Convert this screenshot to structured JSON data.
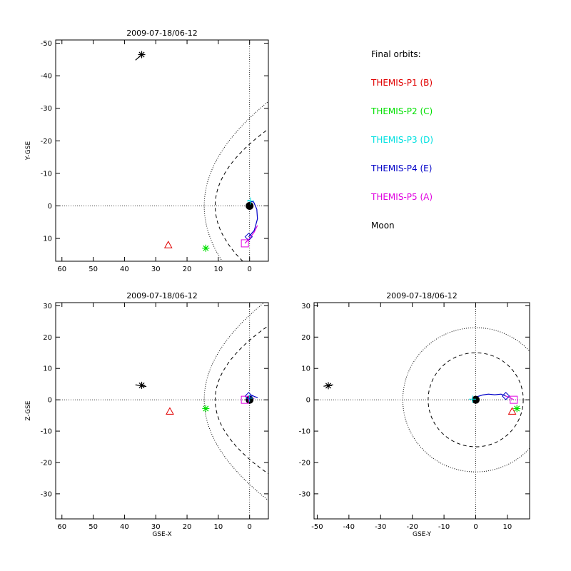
{
  "legend": {
    "title": "Final orbits:",
    "items": [
      {
        "label": "THEMIS-P1 (B)",
        "color": "#e00000"
      },
      {
        "label": "THEMIS-P2 (C)",
        "color": "#00e000"
      },
      {
        "label": "THEMIS-P3 (D)",
        "color": "#00e0e0"
      },
      {
        "label": "THEMIS-P4 (E)",
        "color": "#0000c8"
      },
      {
        "label": "THEMIS-P5 (A)",
        "color": "#e000e0"
      },
      {
        "label": "Moon",
        "color": "#000000"
      }
    ]
  },
  "chart_data": [
    {
      "type": "scatter",
      "title": "2009-07-18/06-12",
      "xlabel": "",
      "ylabel": "Y-GSE",
      "xlim": [
        62,
        -6
      ],
      "ylim": [
        17,
        -51
      ],
      "xticks": [
        60,
        50,
        40,
        30,
        20,
        10,
        0
      ],
      "yticks": [
        -50,
        -40,
        -30,
        -20,
        -10,
        0,
        10
      ],
      "boundaries": [
        {
          "kind": "bow-shock",
          "style": "dotted",
          "nose_x": 14.5,
          "half_width": 27,
          "axis": "Y"
        },
        {
          "kind": "magnetopause",
          "style": "dashed",
          "nose_x": 11,
          "half_width": 19,
          "axis": "Y"
        }
      ],
      "earth": [
        0,
        0
      ],
      "spacecraft": [
        {
          "name": "THEMIS-P1 (B)",
          "marker": "triangle",
          "color": "#e00000",
          "x": 26,
          "y": 12
        },
        {
          "name": "THEMIS-P2 (C)",
          "marker": "asterisk",
          "color": "#00e000",
          "x": 14,
          "y": 13
        },
        {
          "name": "THEMIS-P3 (D)",
          "marker": "cross",
          "color": "#00e0e0",
          "x": -0.3,
          "y": -1.5
        },
        {
          "name": "THEMIS-P4 (E)",
          "marker": "diamond",
          "color": "#0000c8",
          "x": 0.3,
          "y": 9.5
        },
        {
          "name": "THEMIS-P5 (A)",
          "marker": "square",
          "color": "#e000e0",
          "x": 1.5,
          "y": 11.5
        },
        {
          "name": "Moon",
          "marker": "asterisk",
          "color": "#000000",
          "x": 34.5,
          "y": -46.5
        }
      ],
      "tracks": [
        {
          "color": "#00e0e0",
          "x": [
            -0.5,
            -0.3,
            0.5
          ],
          "y": [
            -0.5,
            -1.5,
            -1.8
          ]
        },
        {
          "color": "#0000c8",
          "x": [
            0.3,
            -1.5,
            -2.5,
            -2.3,
            -1.3,
            0.1
          ],
          "y": [
            9.5,
            7.5,
            4,
            1,
            -1.2,
            -1.5
          ]
        },
        {
          "color": "#e000e0",
          "x": [
            1.5,
            0,
            -1.5,
            -2.5
          ],
          "y": [
            11.5,
            10,
            8,
            6
          ]
        },
        {
          "color": "#000000",
          "x": [
            34.5,
            36.5
          ],
          "y": [
            -46.5,
            -44.8
          ]
        }
      ]
    },
    {
      "type": "scatter",
      "title": "2009-07-18/06-12",
      "xlabel": "GSE-X",
      "ylabel": "Z-GSE",
      "xlim": [
        62,
        -6
      ],
      "ylim": [
        -38,
        31
      ],
      "xticks": [
        60,
        50,
        40,
        30,
        20,
        10,
        0
      ],
      "yticks": [
        -30,
        -20,
        -10,
        0,
        10,
        20,
        30
      ],
      "boundaries": [
        {
          "kind": "bow-shock",
          "style": "dotted",
          "nose_x": 14.5,
          "half_width": 27,
          "axis": "Z"
        },
        {
          "kind": "magnetopause",
          "style": "dashed",
          "nose_x": 11,
          "half_width": 19,
          "axis": "Z"
        }
      ],
      "earth": [
        0,
        0
      ],
      "spacecraft": [
        {
          "name": "THEMIS-P1 (B)",
          "marker": "triangle",
          "color": "#e00000",
          "x": 25.5,
          "y": -3.7
        },
        {
          "name": "THEMIS-P2 (C)",
          "marker": "asterisk",
          "color": "#00e000",
          "x": 14,
          "y": -2.8
        },
        {
          "name": "THEMIS-P3 (D)",
          "marker": "cross",
          "color": "#00e0e0",
          "x": 0,
          "y": 0.5
        },
        {
          "name": "THEMIS-P4 (E)",
          "marker": "diamond",
          "color": "#0000c8",
          "x": 0.3,
          "y": 1.2
        },
        {
          "name": "THEMIS-P5 (A)",
          "marker": "square",
          "color": "#e000e0",
          "x": 1.5,
          "y": 0
        },
        {
          "name": "Moon",
          "marker": "asterisk",
          "color": "#000000",
          "x": 34.5,
          "y": 4.6
        }
      ],
      "tracks": [
        {
          "color": "#0000c8",
          "x": [
            0.3,
            -0.6,
            -1.6,
            -2.6
          ],
          "y": [
            1.2,
            1.5,
            1,
            0.7
          ]
        },
        {
          "color": "#e000e0",
          "x": [
            1.5,
            0,
            -1.5
          ],
          "y": [
            0,
            0.2,
            0.5
          ]
        },
        {
          "color": "#000000",
          "x": [
            33,
            36.5
          ],
          "y": [
            4.2,
            4.8
          ]
        }
      ]
    },
    {
      "type": "scatter",
      "title": "2009-07-18/06-12",
      "xlabel": "GSE-Y",
      "ylabel": "",
      "xlim": [
        -51,
        17
      ],
      "ylim": [
        -38,
        31
      ],
      "xticks": [
        -50,
        -40,
        -30,
        -20,
        -10,
        0,
        10
      ],
      "yticks": [
        -30,
        -20,
        -10,
        0,
        10,
        20,
        30
      ],
      "boundaries": [
        {
          "kind": "bow-shock",
          "style": "dotted",
          "radius": 23
        },
        {
          "kind": "magnetopause",
          "style": "dashed",
          "radius": 15
        }
      ],
      "earth": [
        0,
        0
      ],
      "spacecraft": [
        {
          "name": "THEMIS-P1 (B)",
          "marker": "triangle",
          "color": "#e00000",
          "x": 11.5,
          "y": -3.7
        },
        {
          "name": "THEMIS-P2 (C)",
          "marker": "asterisk",
          "color": "#00e000",
          "x": 13,
          "y": -2.8
        },
        {
          "name": "THEMIS-P3 (D)",
          "marker": "cross",
          "color": "#00e0e0",
          "x": -1,
          "y": 0.2
        },
        {
          "name": "THEMIS-P4 (E)",
          "marker": "diamond",
          "color": "#0000c8",
          "x": 9.5,
          "y": 1.2
        },
        {
          "name": "THEMIS-P5 (A)",
          "marker": "square",
          "color": "#e000e0",
          "x": 12,
          "y": 0
        },
        {
          "name": "Moon",
          "marker": "asterisk",
          "color": "#000000",
          "x": -46.5,
          "y": 4.5
        }
      ],
      "tracks": [
        {
          "color": "#0000c8",
          "x": [
            0,
            2,
            4,
            6,
            8,
            9.5
          ],
          "y": [
            0.8,
            1.5,
            1.8,
            1.6,
            1.8,
            1.2
          ]
        },
        {
          "color": "#e000e0",
          "x": [
            9.5,
            11,
            12
          ],
          "y": [
            1.2,
            0.6,
            0
          ]
        },
        {
          "color": "#000000",
          "x": [
            -48,
            -45
          ],
          "y": [
            4.3,
            4.8
          ]
        }
      ]
    }
  ]
}
